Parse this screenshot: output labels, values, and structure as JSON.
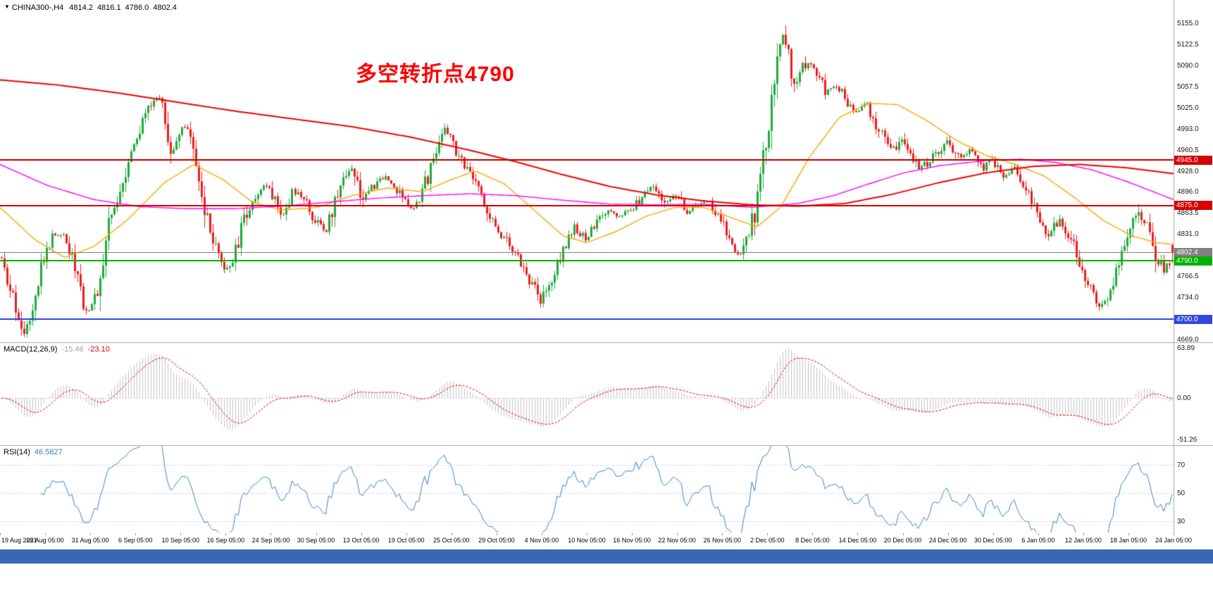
{
  "window": {
    "bottom_bar_color": "#3A67B2"
  },
  "header": {
    "collapse_icon": "▼",
    "symbol_timeframe": "CHINA300-,H4",
    "open": "4814.2",
    "high": "4816.1",
    "low": "4786.0",
    "close": "4802.4"
  },
  "annotation": {
    "text": "多空转折点4790",
    "color": "#FF0000"
  },
  "chart_data": {
    "type": "candlestick",
    "symbol": "CHINA300-",
    "timeframe": "H4",
    "bars": 416,
    "last_bar": {
      "open": 4814.2,
      "high": 4816.1,
      "low": 4786.0,
      "close": 4802.4
    },
    "candle_colors": {
      "up": "#1FAA3C",
      "down": "#EF1C1C"
    },
    "y_axis": {
      "ticks": [
        "5155.0",
        "5122.5",
        "5090.0",
        "5057.5",
        "5025.0",
        "4993.0",
        "4960.5",
        "4928.0",
        "4896.0",
        "4863.5",
        "4831.0",
        "4766.5",
        "4734.0",
        "4669.0"
      ]
    },
    "x_axis": {
      "labels": [
        "19 Aug 2021",
        "25 Aug 05:00",
        "31 Aug 05:00",
        "6 Sep 05:00",
        "10 Sep 05:00",
        "16 Sep 05:00",
        "24 Sep 05:00",
        "30 Sep 05:00",
        "13 Oct 05:00",
        "19 Oct 05:00",
        "25 Oct 05:00",
        "29 Oct 05:00",
        "4 Nov 05:00",
        "10 Nov 05:00",
        "16 Nov 05:00",
        "22 Nov 05:00",
        "26 Nov 05:00",
        "2 Dec 05:00",
        "8 Dec 05:00",
        "14 Dec 05:00",
        "20 Dec 05:00",
        "24 Dec 05:00",
        "30 Dec 05:00",
        "6 Jan 05:00",
        "12 Jan 05:00",
        "18 Jan 05:00",
        "24 Jan 05:00"
      ]
    },
    "levels": [
      {
        "price": 4945.0,
        "label": "4945.0",
        "color": "#D60000",
        "line_width": 2,
        "type": "resistance-upper"
      },
      {
        "price": 4875.0,
        "label": "4875.0",
        "color": "#D60000",
        "line_width": 2,
        "type": "resistance-lower"
      },
      {
        "price": 4802.4,
        "label": "4802.4",
        "color": "#808080",
        "line_width": 1,
        "type": "current-price"
      },
      {
        "price": 4790.0,
        "label": "4790.0",
        "color": "#00B300",
        "line_width": 2,
        "type": "support-pivot"
      },
      {
        "price": 4700.0,
        "label": "4700.0",
        "color": "#3348E0",
        "line_width": 2,
        "type": "support-lower"
      }
    ],
    "price_path_waypoints": [
      [
        0.0,
        4795
      ],
      [
        0.01,
        4740
      ],
      [
        0.022,
        4680
      ],
      [
        0.035,
        4775
      ],
      [
        0.045,
        4825
      ],
      [
        0.055,
        4835
      ],
      [
        0.065,
        4780
      ],
      [
        0.075,
        4710
      ],
      [
        0.085,
        4745
      ],
      [
        0.092,
        4835
      ],
      [
        0.1,
        4880
      ],
      [
        0.11,
        4945
      ],
      [
        0.12,
        4990
      ],
      [
        0.131,
        5035
      ],
      [
        0.138,
        5042
      ],
      [
        0.146,
        4952
      ],
      [
        0.155,
        5000
      ],
      [
        0.162,
        4985
      ],
      [
        0.17,
        4910
      ],
      [
        0.178,
        4845
      ],
      [
        0.186,
        4798
      ],
      [
        0.193,
        4772
      ],
      [
        0.201,
        4798
      ],
      [
        0.211,
        4862
      ],
      [
        0.221,
        4898
      ],
      [
        0.231,
        4906
      ],
      [
        0.241,
        4856
      ],
      [
        0.251,
        4898
      ],
      [
        0.261,
        4880
      ],
      [
        0.27,
        4850
      ],
      [
        0.279,
        4836
      ],
      [
        0.29,
        4906
      ],
      [
        0.3,
        4938
      ],
      [
        0.31,
        4886
      ],
      [
        0.32,
        4906
      ],
      [
        0.33,
        4920
      ],
      [
        0.34,
        4896
      ],
      [
        0.35,
        4870
      ],
      [
        0.36,
        4890
      ],
      [
        0.37,
        4948
      ],
      [
        0.379,
        5000
      ],
      [
        0.39,
        4958
      ],
      [
        0.4,
        4924
      ],
      [
        0.41,
        4896
      ],
      [
        0.42,
        4850
      ],
      [
        0.43,
        4826
      ],
      [
        0.44,
        4800
      ],
      [
        0.45,
        4770
      ],
      [
        0.461,
        4726
      ],
      [
        0.47,
        4758
      ],
      [
        0.48,
        4806
      ],
      [
        0.49,
        4840
      ],
      [
        0.5,
        4826
      ],
      [
        0.51,
        4850
      ],
      [
        0.52,
        4866
      ],
      [
        0.53,
        4856
      ],
      [
        0.539,
        4870
      ],
      [
        0.549,
        4890
      ],
      [
        0.558,
        4906
      ],
      [
        0.568,
        4880
      ],
      [
        0.577,
        4894
      ],
      [
        0.586,
        4864
      ],
      [
        0.596,
        4876
      ],
      [
        0.606,
        4880
      ],
      [
        0.615,
        4852
      ],
      [
        0.625,
        4806
      ],
      [
        0.632,
        4800
      ],
      [
        0.64,
        4830
      ],
      [
        0.648,
        4900
      ],
      [
        0.655,
        4990
      ],
      [
        0.662,
        5080
      ],
      [
        0.668,
        5138
      ],
      [
        0.674,
        5092
      ],
      [
        0.68,
        5058
      ],
      [
        0.688,
        5098
      ],
      [
        0.696,
        5084
      ],
      [
        0.705,
        5050
      ],
      [
        0.715,
        5058
      ],
      [
        0.724,
        5032
      ],
      [
        0.731,
        5020
      ],
      [
        0.74,
        5032
      ],
      [
        0.75,
        4992
      ],
      [
        0.76,
        4956
      ],
      [
        0.769,
        4980
      ],
      [
        0.778,
        4950
      ],
      [
        0.786,
        4930
      ],
      [
        0.795,
        4950
      ],
      [
        0.808,
        4974
      ],
      [
        0.818,
        4944
      ],
      [
        0.828,
        4958
      ],
      [
        0.838,
        4930
      ],
      [
        0.846,
        4944
      ],
      [
        0.856,
        4920
      ],
      [
        0.866,
        4932
      ],
      [
        0.876,
        4898
      ],
      [
        0.885,
        4856
      ],
      [
        0.895,
        4828
      ],
      [
        0.904,
        4858
      ],
      [
        0.914,
        4820
      ],
      [
        0.923,
        4778
      ],
      [
        0.931,
        4740
      ],
      [
        0.94,
        4718
      ],
      [
        0.948,
        4748
      ],
      [
        0.956,
        4792
      ],
      [
        0.963,
        4825
      ],
      [
        0.971,
        4868
      ],
      [
        0.979,
        4842
      ],
      [
        0.986,
        4796
      ],
      [
        0.993,
        4775
      ],
      [
        1.0,
        4802
      ]
    ],
    "moving_averages": [
      {
        "name": "ma-mid-orange",
        "color": "#FFA500",
        "width": 1.4,
        "points": [
          [
            0,
            4872
          ],
          [
            0.03,
            4822
          ],
          [
            0.055,
            4795
          ],
          [
            0.08,
            4812
          ],
          [
            0.11,
            4855
          ],
          [
            0.14,
            4910
          ],
          [
            0.165,
            4938
          ],
          [
            0.19,
            4915
          ],
          [
            0.215,
            4880
          ],
          [
            0.24,
            4868
          ],
          [
            0.27,
            4872
          ],
          [
            0.3,
            4890
          ],
          [
            0.33,
            4902
          ],
          [
            0.36,
            4896
          ],
          [
            0.385,
            4915
          ],
          [
            0.405,
            4928
          ],
          [
            0.43,
            4908
          ],
          [
            0.455,
            4868
          ],
          [
            0.48,
            4828
          ],
          [
            0.5,
            4818
          ],
          [
            0.525,
            4835
          ],
          [
            0.55,
            4858
          ],
          [
            0.575,
            4872
          ],
          [
            0.6,
            4872
          ],
          [
            0.625,
            4855
          ],
          [
            0.645,
            4842
          ],
          [
            0.665,
            4872
          ],
          [
            0.69,
            4950
          ],
          [
            0.715,
            5010
          ],
          [
            0.74,
            5032
          ],
          [
            0.765,
            5030
          ],
          [
            0.79,
            5005
          ],
          [
            0.815,
            4975
          ],
          [
            0.84,
            4952
          ],
          [
            0.865,
            4938
          ],
          [
            0.89,
            4920
          ],
          [
            0.915,
            4888
          ],
          [
            0.94,
            4852
          ],
          [
            0.965,
            4828
          ],
          [
            0.985,
            4818
          ],
          [
            1.0,
            4815
          ]
        ]
      },
      {
        "name": "ma-slow-magenta",
        "color": "#FF00FF",
        "width": 1.4,
        "points": [
          [
            0,
            4938
          ],
          [
            0.04,
            4906
          ],
          [
            0.08,
            4884
          ],
          [
            0.12,
            4873
          ],
          [
            0.16,
            4870
          ],
          [
            0.2,
            4870
          ],
          [
            0.24,
            4874
          ],
          [
            0.28,
            4880
          ],
          [
            0.32,
            4886
          ],
          [
            0.36,
            4890
          ],
          [
            0.4,
            4893
          ],
          [
            0.44,
            4890
          ],
          [
            0.48,
            4883
          ],
          [
            0.52,
            4877
          ],
          [
            0.56,
            4876
          ],
          [
            0.6,
            4877
          ],
          [
            0.64,
            4872
          ],
          [
            0.68,
            4878
          ],
          [
            0.71,
            4890
          ],
          [
            0.74,
            4908
          ],
          [
            0.77,
            4925
          ],
          [
            0.8,
            4936
          ],
          [
            0.84,
            4944
          ],
          [
            0.87,
            4946
          ],
          [
            0.9,
            4941
          ],
          [
            0.93,
            4930
          ],
          [
            0.96,
            4912
          ],
          [
            1.0,
            4884
          ]
        ]
      },
      {
        "name": "ma-long-red",
        "color": "#F00000",
        "width": 2,
        "points": [
          [
            0,
            5068
          ],
          [
            0.05,
            5060
          ],
          [
            0.1,
            5048
          ],
          [
            0.15,
            5034
          ],
          [
            0.2,
            5020
          ],
          [
            0.25,
            5008
          ],
          [
            0.3,
            4996
          ],
          [
            0.35,
            4980
          ],
          [
            0.4,
            4960
          ],
          [
            0.44,
            4942
          ],
          [
            0.48,
            4922
          ],
          [
            0.52,
            4904
          ],
          [
            0.56,
            4891
          ],
          [
            0.6,
            4882
          ],
          [
            0.64,
            4876
          ],
          [
            0.68,
            4874
          ],
          [
            0.72,
            4878
          ],
          [
            0.76,
            4892
          ],
          [
            0.8,
            4910
          ],
          [
            0.84,
            4925
          ],
          [
            0.88,
            4935
          ],
          [
            0.92,
            4938
          ],
          [
            0.96,
            4933
          ],
          [
            1.0,
            4924
          ]
        ]
      }
    ],
    "indicators": [
      {
        "name": "MACD",
        "label": "MACD(12,26,9)",
        "value_main": "-15.46",
        "value_signal": "-23.10",
        "params": {
          "fast": 12,
          "slow": 26,
          "signal": 9
        },
        "axis_labels": [
          "63.89",
          "0.00",
          "-51.26"
        ],
        "histogram_color": "#C3C3C3",
        "signal_color": "#E00000"
      },
      {
        "name": "RSI",
        "label": "RSI(14)",
        "value": "46.5827",
        "period": 14,
        "levels": [
          70,
          50,
          30
        ],
        "line_color": "#3882C8"
      }
    ]
  }
}
